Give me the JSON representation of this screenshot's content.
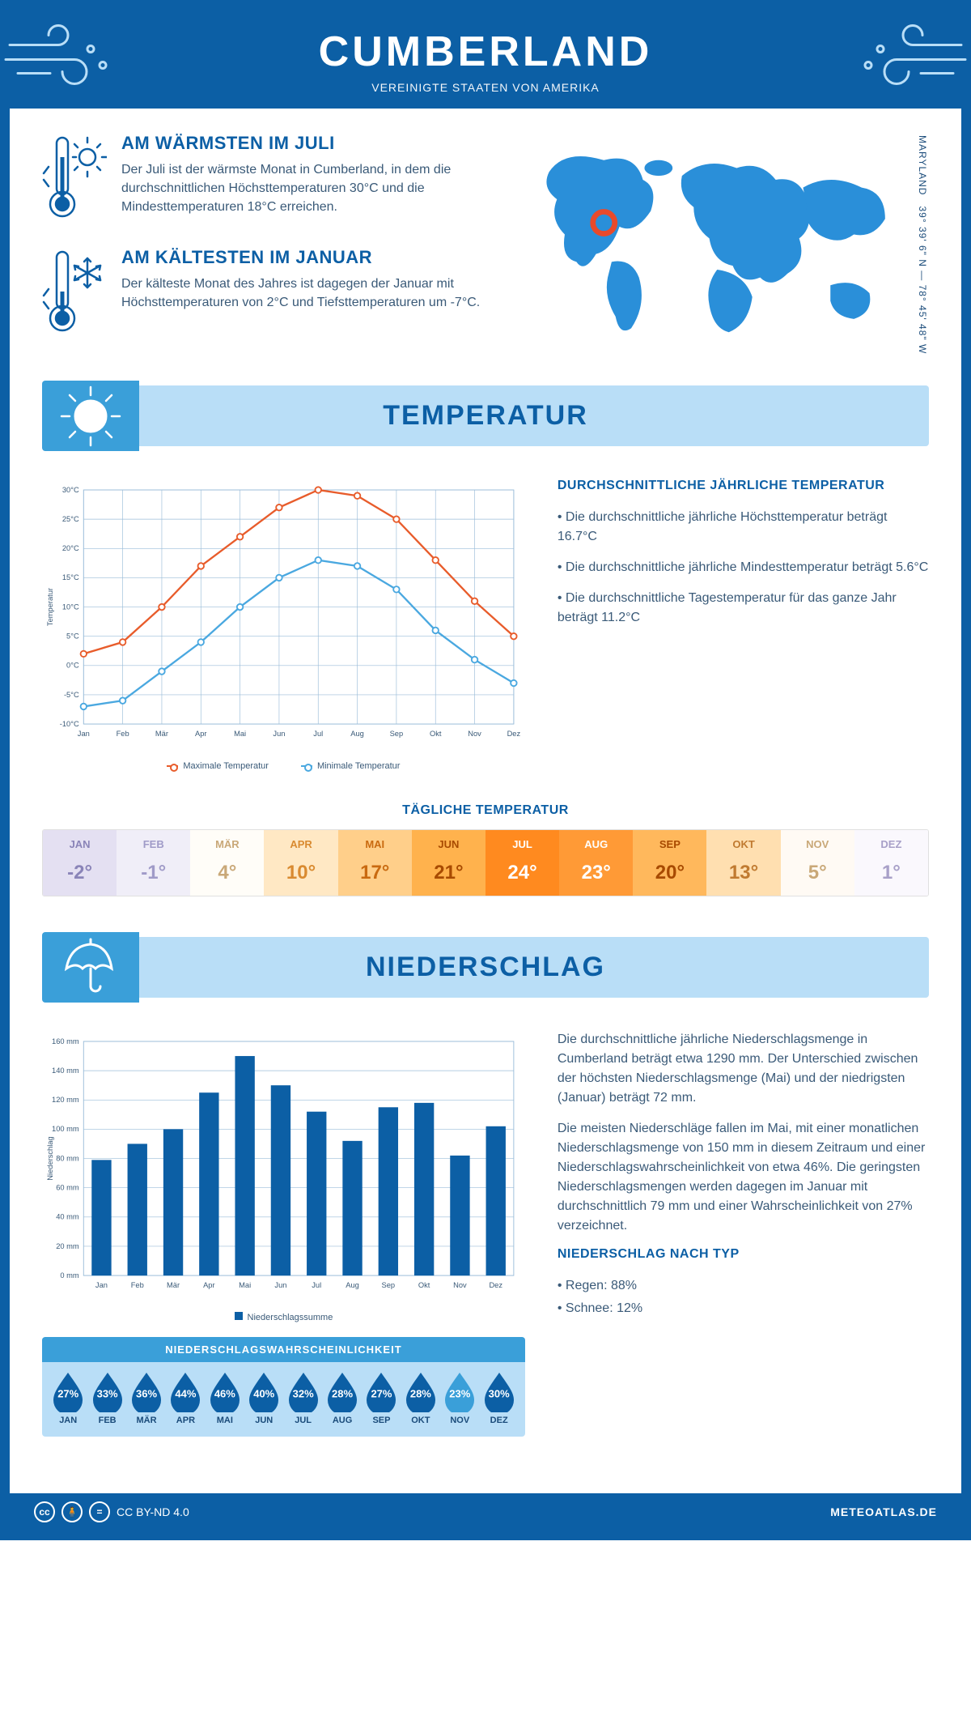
{
  "header": {
    "title": "CUMBERLAND",
    "subtitle": "VEREINIGTE STAATEN VON AMERIKA"
  },
  "coords": {
    "lat": "39° 39' 6\" N",
    "sep": "—",
    "lon": "78° 45' 48\" W",
    "state": "MARYLAND"
  },
  "intro": {
    "warm": {
      "title": "AM WÄRMSTEN IM JULI",
      "text": "Der Juli ist der wärmste Monat in Cumberland, in dem die durchschnittlichen Höchsttemperaturen 30°C und die Mindesttemperaturen 18°C erreichen."
    },
    "cold": {
      "title": "AM KÄLTESTEN IM JANUAR",
      "text": "Der kälteste Monat des Jahres ist dagegen der Januar mit Höchsttemperaturen von 2°C und Tiefsttemperaturen um -7°C."
    }
  },
  "temperature": {
    "banner": "TEMPERATUR",
    "chart": {
      "type": "line",
      "months": [
        "Jan",
        "Feb",
        "Mär",
        "Apr",
        "Mai",
        "Jun",
        "Jul",
        "Aug",
        "Sep",
        "Okt",
        "Nov",
        "Dez"
      ],
      "max": [
        2,
        4,
        10,
        17,
        22,
        27,
        30,
        29,
        25,
        18,
        11,
        5
      ],
      "min": [
        -7,
        -6,
        -1,
        4,
        10,
        15,
        18,
        17,
        13,
        6,
        1,
        -3
      ],
      "ylim": [
        -10,
        30
      ],
      "ytick_step": 5,
      "y_axis_label": "Temperatur",
      "max_color": "#e85c2b",
      "min_color": "#4aa8e0",
      "grid_color": "#9bbdd9",
      "background_color": "#ffffff",
      "line_width": 2.5,
      "marker_size": 4,
      "legend_max": "Maximale Temperatur",
      "legend_min": "Minimale Temperatur"
    },
    "facts": {
      "title": "DURCHSCHNITTLICHE JÄHRLICHE TEMPERATUR",
      "b1": "• Die durchschnittliche jährliche Höchsttemperatur beträgt 16.7°C",
      "b2": "• Die durchschnittliche jährliche Mindesttemperatur beträgt 5.6°C",
      "b3": "• Die durchschnittliche Tagestemperatur für das ganze Jahr beträgt 11.2°C"
    },
    "daily": {
      "title": "TÄGLICHE TEMPERATUR",
      "cells": [
        {
          "m": "JAN",
          "v": "-2°",
          "bg": "#e4e0f2",
          "fg": "#8a84b8"
        },
        {
          "m": "FEB",
          "v": "-1°",
          "bg": "#f0eef8",
          "fg": "#a09bc8"
        },
        {
          "m": "MÄR",
          "v": "4°",
          "bg": "#fffdf8",
          "fg": "#c9a878"
        },
        {
          "m": "APR",
          "v": "10°",
          "bg": "#ffe8c4",
          "fg": "#d98a30"
        },
        {
          "m": "MAI",
          "v": "17°",
          "bg": "#ffcf8a",
          "fg": "#c96a10"
        },
        {
          "m": "JUN",
          "v": "21°",
          "bg": "#ffb24d",
          "fg": "#a84a00"
        },
        {
          "m": "JUL",
          "v": "24°",
          "bg": "#ff8a1f",
          "fg": "#ffffff"
        },
        {
          "m": "AUG",
          "v": "23°",
          "bg": "#ff9a36",
          "fg": "#ffffff"
        },
        {
          "m": "SEP",
          "v": "20°",
          "bg": "#ffb85c",
          "fg": "#a84a00"
        },
        {
          "m": "OKT",
          "v": "13°",
          "bg": "#ffdfb0",
          "fg": "#c07a30"
        },
        {
          "m": "NOV",
          "v": "5°",
          "bg": "#fffaf4",
          "fg": "#c9a878"
        },
        {
          "m": "DEZ",
          "v": "1°",
          "bg": "#faf8fd",
          "fg": "#a8a0c8"
        }
      ]
    }
  },
  "precip": {
    "banner": "NIEDERSCHLAG",
    "chart": {
      "type": "bar",
      "months": [
        "Jan",
        "Feb",
        "Mär",
        "Apr",
        "Mai",
        "Jun",
        "Jul",
        "Aug",
        "Sep",
        "Okt",
        "Nov",
        "Dez"
      ],
      "values": [
        79,
        90,
        100,
        125,
        150,
        130,
        112,
        92,
        115,
        118,
        82,
        102
      ],
      "ylim": [
        0,
        160
      ],
      "ytick_step": 20,
      "y_axis_label": "Niederschlag",
      "bar_color": "#0c5fa5",
      "grid_color": "#9bbdd9",
      "background_color": "#ffffff",
      "bar_width": 0.55,
      "legend": "Niederschlagssumme"
    },
    "text": {
      "p1": "Die durchschnittliche jährliche Niederschlagsmenge in Cumberland beträgt etwa 1290 mm. Der Unterschied zwischen der höchsten Niederschlagsmenge (Mai) und der niedrigsten (Januar) beträgt 72 mm.",
      "p2": "Die meisten Niederschläge fallen im Mai, mit einer monatlichen Niederschlagsmenge von 150 mm in diesem Zeitraum und einer Niederschlagswahrscheinlichkeit von etwa 46%. Die geringsten Niederschlagsmengen werden dagegen im Januar mit durchschnittlich 79 mm und einer Wahrscheinlichkeit von 27% verzeichnet.",
      "type_title": "NIEDERSCHLAG NACH TYP",
      "rain": "• Regen: 88%",
      "snow": "• Schnee: 12%"
    },
    "prob": {
      "title": "NIEDERSCHLAGSWAHRSCHEINLICHKEIT",
      "drops": [
        {
          "m": "JAN",
          "pct": "27%",
          "fill": "#0c5fa5"
        },
        {
          "m": "FEB",
          "pct": "33%",
          "fill": "#0c5fa5"
        },
        {
          "m": "MÄR",
          "pct": "36%",
          "fill": "#0c5fa5"
        },
        {
          "m": "APR",
          "pct": "44%",
          "fill": "#0c5fa5"
        },
        {
          "m": "MAI",
          "pct": "46%",
          "fill": "#0c5fa5"
        },
        {
          "m": "JUN",
          "pct": "40%",
          "fill": "#0c5fa5"
        },
        {
          "m": "JUL",
          "pct": "32%",
          "fill": "#0c5fa5"
        },
        {
          "m": "AUG",
          "pct": "28%",
          "fill": "#0c5fa5"
        },
        {
          "m": "SEP",
          "pct": "27%",
          "fill": "#0c5fa5"
        },
        {
          "m": "OKT",
          "pct": "28%",
          "fill": "#0c5fa5"
        },
        {
          "m": "NOV",
          "pct": "23%",
          "fill": "#3a9fd9"
        },
        {
          "m": "DEZ",
          "pct": "30%",
          "fill": "#0c5fa5"
        }
      ]
    }
  },
  "footer": {
    "license": "CC BY-ND 4.0",
    "site": "METEOATLAS.DE"
  },
  "colors": {
    "primary": "#0c5fa5",
    "accent": "#3a9fd9",
    "light_blue": "#b9def7",
    "world_blue": "#2a8fd9",
    "marker_red": "#e84a2b"
  }
}
